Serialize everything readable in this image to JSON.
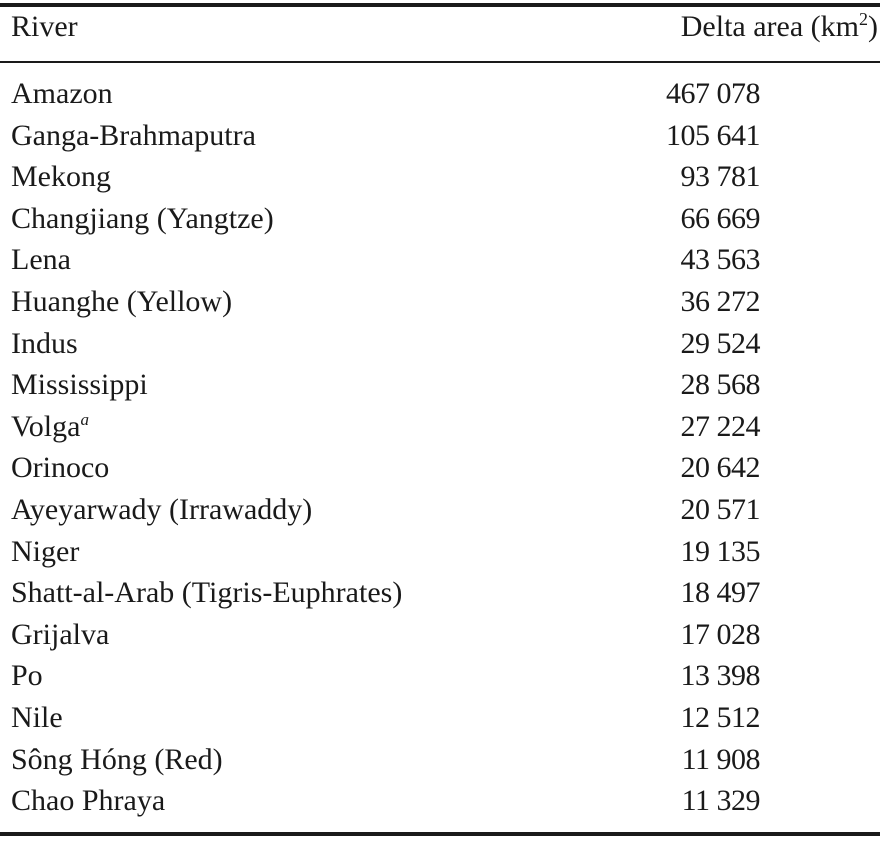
{
  "table": {
    "header": {
      "river": "River",
      "area_label": "Delta area (km",
      "area_sup": "2",
      "area_close": ")"
    },
    "rows": [
      {
        "river": "Amazon",
        "note": "",
        "area": "467 078"
      },
      {
        "river": "Ganga-Brahmaputra",
        "note": "",
        "area": "105 641"
      },
      {
        "river": "Mekong",
        "note": "",
        "area": "93 781"
      },
      {
        "river": "Changjiang (Yangtze)",
        "note": "",
        "area": "66 669"
      },
      {
        "river": "Lena",
        "note": "",
        "area": "43 563"
      },
      {
        "river": "Huanghe (Yellow)",
        "note": "",
        "area": "36 272"
      },
      {
        "river": "Indus",
        "note": "",
        "area": "29 524"
      },
      {
        "river": "Mississippi",
        "note": "",
        "area": "28 568"
      },
      {
        "river": "Volga",
        "note": "a",
        "area": "27 224"
      },
      {
        "river": "Orinoco",
        "note": "",
        "area": "20 642"
      },
      {
        "river": "Ayeyarwady (Irrawaddy)",
        "note": "",
        "area": "20 571"
      },
      {
        "river": "Niger",
        "note": "",
        "area": "19 135"
      },
      {
        "river": "Shatt-al-Arab (Tigris-Euphrates)",
        "note": "",
        "area": "18 497"
      },
      {
        "river": "Grijalva",
        "note": "",
        "area": "17 028"
      },
      {
        "river": "Po",
        "note": "",
        "area": "13 398"
      },
      {
        "river": "Nile",
        "note": "",
        "area": "12 512"
      },
      {
        "river": "Sông Hóng (Red)",
        "note": "",
        "area": "11 908"
      },
      {
        "river": "Chao Phraya",
        "note": "",
        "area": "11 329"
      }
    ]
  }
}
